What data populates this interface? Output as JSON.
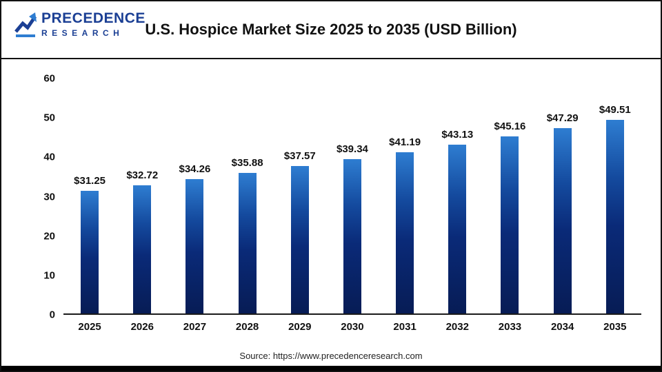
{
  "header": {
    "logo": {
      "name_top": "PRECEDENCE",
      "name_bottom": "RESEARCH"
    },
    "title": "U.S. Hospice Market Size 2025 to 2035 (USD Billion)"
  },
  "chart_data": {
    "type": "bar",
    "title": "U.S. Hospice Market Size 2025 to 2035 (USD Billion)",
    "categories": [
      "2025",
      "2026",
      "2027",
      "2028",
      "2029",
      "2030",
      "2031",
      "2032",
      "2033",
      "2034",
      "2035"
    ],
    "values": [
      31.25,
      32.72,
      34.26,
      35.88,
      37.57,
      39.34,
      41.19,
      43.13,
      45.16,
      47.29,
      49.51
    ],
    "value_labels": [
      "$31.25",
      "$32.72",
      "$34.26",
      "$35.88",
      "$37.57",
      "$39.34",
      "$41.19",
      "$43.13",
      "$45.16",
      "$47.29",
      "$49.51"
    ],
    "xlabel": "",
    "ylabel": "",
    "ylim": [
      0,
      60
    ],
    "y_ticks": [
      0,
      10,
      20,
      30,
      40,
      50,
      60
    ],
    "grid": false,
    "legend": "none",
    "bar_color_top": "#2e7dd1",
    "bar_color_bottom": "#071c55"
  },
  "footer": {
    "source": "Source: https://www.precedenceresearch.com"
  }
}
